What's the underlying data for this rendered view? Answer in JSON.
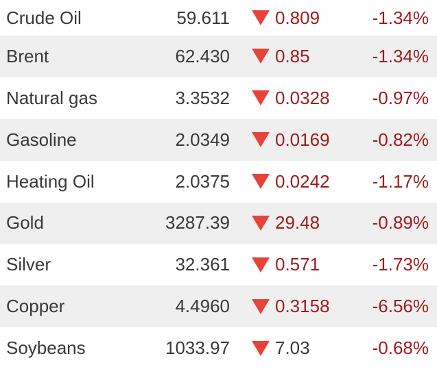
{
  "app": {
    "name": "commodities-quotes-widget"
  },
  "colors": {
    "text-dark": "#38393b",
    "down-dark-red": "#9e1b1b",
    "arrow-red": "#e8433a",
    "row-alt-bg": "#efefef",
    "row-bg": "#ffffff"
  },
  "table": {
    "columns": [
      "name",
      "price",
      "change",
      "percent"
    ],
    "rows": [
      {
        "name": "Crude Oil",
        "price": "59.611",
        "change": "0.809",
        "percent": "-1.34%",
        "direction": "down",
        "change_text_style": "red"
      },
      {
        "name": "Brent",
        "price": "62.430",
        "change": "0.85",
        "percent": "-1.34%",
        "direction": "down",
        "change_text_style": "red"
      },
      {
        "name": "Natural gas",
        "price": "3.3532",
        "change": "0.0328",
        "percent": "-0.97%",
        "direction": "down",
        "change_text_style": "red"
      },
      {
        "name": "Gasoline",
        "price": "2.0349",
        "change": "0.0169",
        "percent": "-0.82%",
        "direction": "down",
        "change_text_style": "red"
      },
      {
        "name": "Heating Oil",
        "price": "2.0375",
        "change": "0.0242",
        "percent": "-1.17%",
        "direction": "down",
        "change_text_style": "red"
      },
      {
        "name": "Gold",
        "price": "3287.39",
        "change": "29.48",
        "percent": "-0.89%",
        "direction": "down",
        "change_text_style": "red"
      },
      {
        "name": "Silver",
        "price": "32.361",
        "change": "0.571",
        "percent": "-1.73%",
        "direction": "down",
        "change_text_style": "red"
      },
      {
        "name": "Copper",
        "price": "4.4960",
        "change": "0.3158",
        "percent": "-6.56%",
        "direction": "down",
        "change_text_style": "red"
      },
      {
        "name": "Soybeans",
        "price": "1033.97",
        "change": "7.03",
        "percent": "-0.68%",
        "direction": "down",
        "change_text_style": "dark"
      }
    ]
  }
}
